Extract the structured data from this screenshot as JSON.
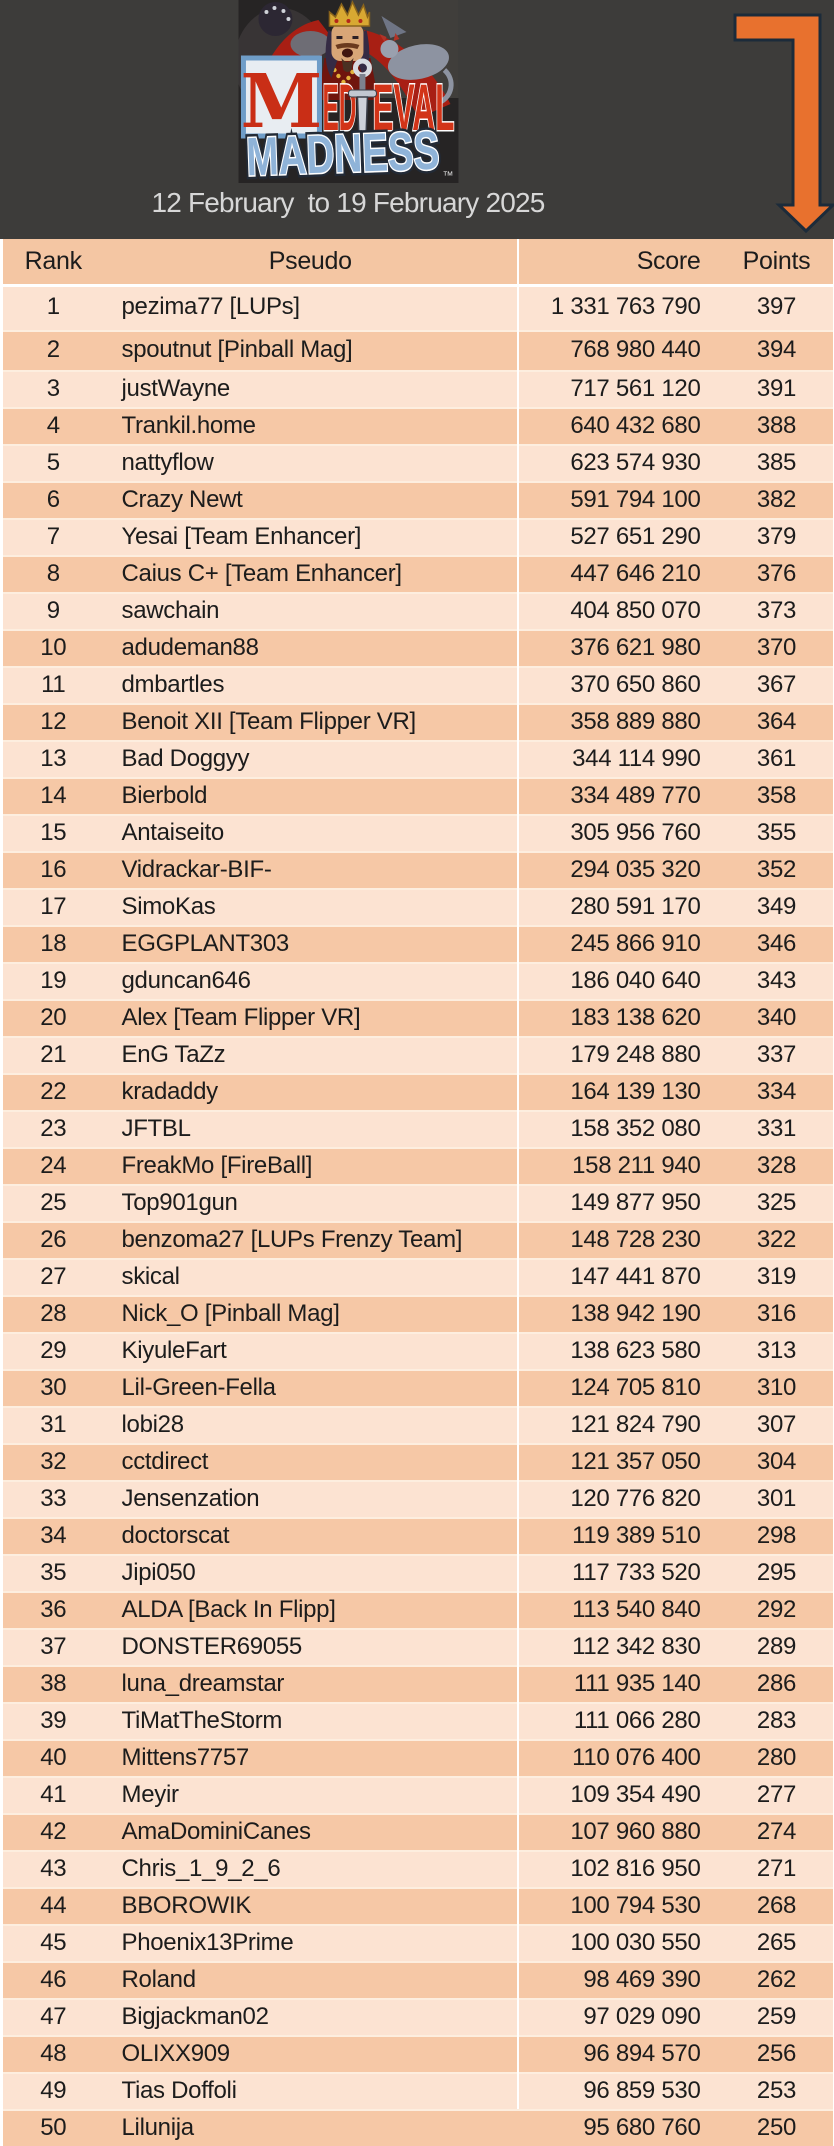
{
  "banner": {
    "date_range": "12 February  to 19 February 2025",
    "arrow_icon": "elbow-down-arrow",
    "logo": {
      "m": "M",
      "ed": "ED",
      "eval": "EVAL",
      "madness": "MADNESS",
      "tm": "™"
    }
  },
  "palette": {
    "banner_bg": "#3d3c3a",
    "header_row_bg": "#f4c6a3",
    "row_light": "#fce3d2",
    "row_dark": "#f6c8a6",
    "arrow_orange": "#e8712e",
    "arrow_outline": "#1c2b3a",
    "date_text": "#d7d7d7",
    "body_text": "#1c1c1c"
  },
  "table": {
    "columns": [
      "Rank",
      "Pseudo",
      "Score",
      "Points"
    ],
    "rows": [
      {
        "rank": "1",
        "pseudo": "pezima77 [LUPs]",
        "score": "1 331 763 790",
        "points": "397"
      },
      {
        "rank": "2",
        "pseudo": "spoutnut [Pinball Mag]",
        "score": "768 980 440",
        "points": "394"
      },
      {
        "rank": "3",
        "pseudo": "justWayne",
        "score": "717 561 120",
        "points": "391"
      },
      {
        "rank": "4",
        "pseudo": "Trankil.home",
        "score": "640 432 680",
        "points": "388"
      },
      {
        "rank": "5",
        "pseudo": "nattyflow",
        "score": "623 574 930",
        "points": "385"
      },
      {
        "rank": "6",
        "pseudo": "Crazy Newt",
        "score": "591 794 100",
        "points": "382"
      },
      {
        "rank": "7",
        "pseudo": "Yesai [Team Enhancer]",
        "score": "527 651 290",
        "points": "379"
      },
      {
        "rank": "8",
        "pseudo": "Caius C+ [Team Enhancer]",
        "score": "447 646 210",
        "points": "376"
      },
      {
        "rank": "9",
        "pseudo": "sawchain",
        "score": "404 850 070",
        "points": "373"
      },
      {
        "rank": "10",
        "pseudo": "adudeman88",
        "score": "376 621 980",
        "points": "370"
      },
      {
        "rank": "11",
        "pseudo": "dmbartles",
        "score": "370 650 860",
        "points": "367"
      },
      {
        "rank": "12",
        "pseudo": "Benoit XII [Team Flipper VR]",
        "score": "358 889 880",
        "points": "364"
      },
      {
        "rank": "13",
        "pseudo": "Bad Doggyy",
        "score": "344 114 990",
        "points": "361"
      },
      {
        "rank": "14",
        "pseudo": "Bierbold",
        "score": "334 489 770",
        "points": "358"
      },
      {
        "rank": "15",
        "pseudo": "Antaiseito",
        "score": "305 956 760",
        "points": "355"
      },
      {
        "rank": "16",
        "pseudo": "Vidrackar-BIF-",
        "score": "294 035 320",
        "points": "352"
      },
      {
        "rank": "17",
        "pseudo": "SimoKas",
        "score": "280 591 170",
        "points": "349"
      },
      {
        "rank": "18",
        "pseudo": "EGGPLANT303",
        "score": "245 866 910",
        "points": "346"
      },
      {
        "rank": "19",
        "pseudo": "gduncan646",
        "score": "186 040 640",
        "points": "343"
      },
      {
        "rank": "20",
        "pseudo": "Alex [Team Flipper VR]",
        "score": "183 138 620",
        "points": "340"
      },
      {
        "rank": "21",
        "pseudo": "EnG TaZz",
        "score": "179 248 880",
        "points": "337"
      },
      {
        "rank": "22",
        "pseudo": "kradaddy",
        "score": "164 139 130",
        "points": "334"
      },
      {
        "rank": "23",
        "pseudo": "JFTBL",
        "score": "158 352 080",
        "points": "331"
      },
      {
        "rank": "24",
        "pseudo": "FreakMo [FireBall]",
        "score": "158 211 940",
        "points": "328"
      },
      {
        "rank": "25",
        "pseudo": "Top901gun",
        "score": "149 877 950",
        "points": "325"
      },
      {
        "rank": "26",
        "pseudo": "benzoma27 [LUPs Frenzy Team]",
        "score": "148 728 230",
        "points": "322"
      },
      {
        "rank": "27",
        "pseudo": "skical",
        "score": "147 441 870",
        "points": "319"
      },
      {
        "rank": "28",
        "pseudo": "Nick_O [Pinball Mag]",
        "score": "138 942 190",
        "points": "316"
      },
      {
        "rank": "29",
        "pseudo": "KiyuleFart",
        "score": "138 623 580",
        "points": "313"
      },
      {
        "rank": "30",
        "pseudo": "Lil-Green-Fella",
        "score": "124 705 810",
        "points": "310"
      },
      {
        "rank": "31",
        "pseudo": "lobi28",
        "score": "121 824 790",
        "points": "307"
      },
      {
        "rank": "32",
        "pseudo": "cctdirect",
        "score": "121 357 050",
        "points": "304"
      },
      {
        "rank": "33",
        "pseudo": "Jensenzation",
        "score": "120 776 820",
        "points": "301"
      },
      {
        "rank": "34",
        "pseudo": "doctorscat",
        "score": "119 389 510",
        "points": "298"
      },
      {
        "rank": "35",
        "pseudo": "Jipi050",
        "score": "117 733 520",
        "points": "295"
      },
      {
        "rank": "36",
        "pseudo": "ALDA [Back In Flipp]",
        "score": "113 540 840",
        "points": "292"
      },
      {
        "rank": "37",
        "pseudo": "DONSTER69055",
        "score": "112 342 830",
        "points": "289"
      },
      {
        "rank": "38",
        "pseudo": "luna_dreamstar",
        "score": "111 935 140",
        "points": "286"
      },
      {
        "rank": "39",
        "pseudo": "TiMatTheStorm",
        "score": "111 066 280",
        "points": "283"
      },
      {
        "rank": "40",
        "pseudo": "Mittens7757",
        "score": "110 076 400",
        "points": "280"
      },
      {
        "rank": "41",
        "pseudo": "Meyir",
        "score": "109 354 490",
        "points": "277"
      },
      {
        "rank": "42",
        "pseudo": "AmaDominiCanes",
        "score": "107 960 880",
        "points": "274"
      },
      {
        "rank": "43",
        "pseudo": "Chris_1_9_2_6",
        "score": "102 816 950",
        "points": "271"
      },
      {
        "rank": "44",
        "pseudo": "BBOROWIK",
        "score": "100 794 530",
        "points": "268"
      },
      {
        "rank": "45",
        "pseudo": "Phoenix13Prime",
        "score": "100 030 550",
        "points": "265"
      },
      {
        "rank": "46",
        "pseudo": "Roland",
        "score": "98 469 390",
        "points": "262"
      },
      {
        "rank": "47",
        "pseudo": "Bigjackman02",
        "score": "97 029 090",
        "points": "259"
      },
      {
        "rank": "48",
        "pseudo": "OLIXX909",
        "score": "96 894 570",
        "points": "256"
      },
      {
        "rank": "49",
        "pseudo": "Tias Doffoli",
        "score": "96 859 530",
        "points": "253"
      },
      {
        "rank": "50",
        "pseudo": "Lilunija",
        "score": "95 680 760",
        "points": "250"
      }
    ]
  }
}
